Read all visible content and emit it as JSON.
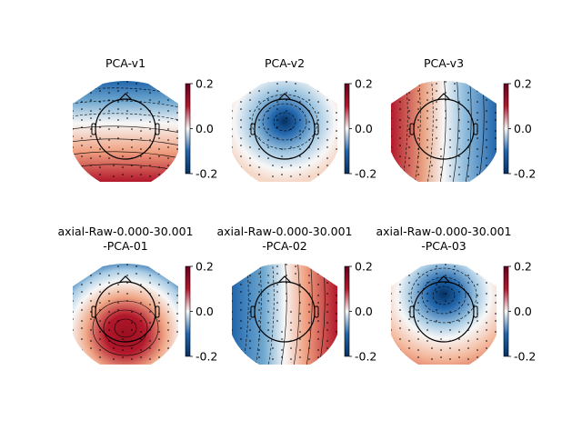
{
  "chart_data": {
    "type": "heatmap",
    "colormap": "RdBu_r",
    "colorbar": {
      "range": [
        -0.2,
        0.2
      ],
      "ticks": [
        "0.2",
        "0.0",
        "-0.2"
      ]
    },
    "maps": [
      {
        "title": [
          "PCA-v1"
        ],
        "pattern": "vertical",
        "low_side": "top"
      },
      {
        "title": [
          "PCA-v2"
        ],
        "pattern": "radial-center-negative"
      },
      {
        "title": [
          "PCA-v3"
        ],
        "pattern": "horizontal",
        "low_side": "right"
      },
      {
        "title": [
          "axial-Raw-0.000-30.001",
          "-PCA-01"
        ],
        "pattern": "radial-posterior-positive"
      },
      {
        "title": [
          "axial-Raw-0.000-30.001",
          "-PCA-02"
        ],
        "pattern": "horizontal",
        "low_side": "left"
      },
      {
        "title": [
          "axial-Raw-0.000-30.001",
          "-PCA-03"
        ],
        "pattern": "radial-frontal-negative"
      }
    ]
  },
  "colors": {
    "positive": "#b2182b",
    "neutral": "#f7f7f7",
    "negative": "#2166ac",
    "deep_negative": "#053061",
    "deep_positive": "#67001f"
  }
}
